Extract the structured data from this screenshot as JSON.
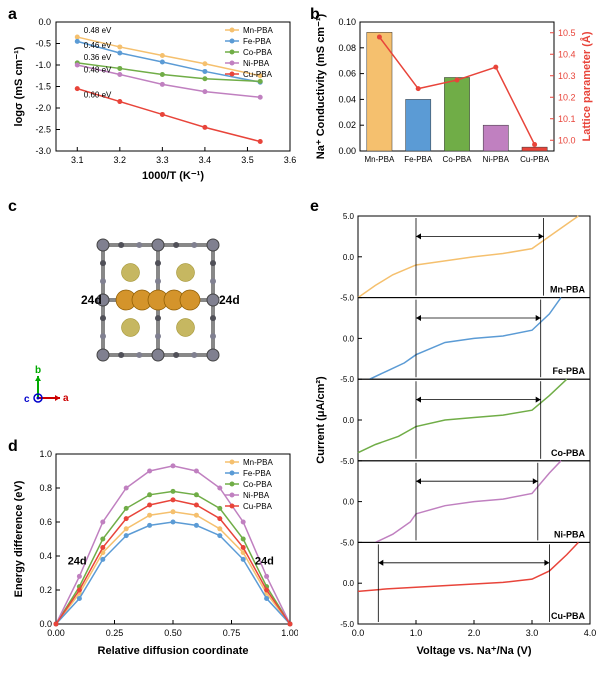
{
  "panel_a": {
    "label": "a",
    "type": "scatter+line",
    "xlabel": "1000/T (K⁻¹)",
    "ylabel": "logσ (mS cm⁻¹)",
    "xlim": [
      3.05,
      3.6
    ],
    "ylim": [
      -3.0,
      0.0
    ],
    "xtick_step": 0.1,
    "ytick_step": 0.5,
    "series": [
      {
        "name": "Mn-PBA",
        "color": "#f5c06e",
        "points": [
          [
            3.1,
            -0.35
          ],
          [
            3.2,
            -0.58
          ],
          [
            3.3,
            -0.78
          ],
          [
            3.4,
            -0.97
          ],
          [
            3.53,
            -1.25
          ]
        ],
        "ea": "0.48 eV"
      },
      {
        "name": "Fe-PBA",
        "color": "#5b9bd5",
        "points": [
          [
            3.1,
            -0.45
          ],
          [
            3.2,
            -0.72
          ],
          [
            3.3,
            -0.93
          ],
          [
            3.4,
            -1.15
          ],
          [
            3.53,
            -1.4
          ]
        ],
        "ea": "0.46 eV"
      },
      {
        "name": "Co-PBA",
        "color": "#70ad47",
        "points": [
          [
            3.1,
            -0.95
          ],
          [
            3.2,
            -1.08
          ],
          [
            3.3,
            -1.22
          ],
          [
            3.4,
            -1.32
          ],
          [
            3.53,
            -1.38
          ]
        ],
        "ea": "0.36 eV"
      },
      {
        "name": "Ni-PBA",
        "color": "#c080c0",
        "points": [
          [
            3.1,
            -1.0
          ],
          [
            3.2,
            -1.22
          ],
          [
            3.3,
            -1.45
          ],
          [
            3.4,
            -1.62
          ],
          [
            3.53,
            -1.75
          ]
        ],
        "ea": "0.48 eV"
      },
      {
        "name": "Cu-PBA",
        "color": "#e8443a",
        "points": [
          [
            3.1,
            -1.55
          ],
          [
            3.2,
            -1.85
          ],
          [
            3.3,
            -2.15
          ],
          [
            3.4,
            -2.45
          ],
          [
            3.53,
            -2.78
          ]
        ],
        "ea": "0.60 eV"
      }
    ],
    "label_fontsize": 11,
    "tick_fontsize": 9
  },
  "panel_b": {
    "label": "b",
    "type": "bar+line",
    "ylabel_left": "Na⁺ Conductivity (mS cm⁻¹)",
    "ylabel_right": "Lattice parameter (Å)",
    "categories": [
      "Mn-PBA",
      "Fe-PBA",
      "Co-PBA",
      "Ni-PBA",
      "Cu-PBA"
    ],
    "bar_values": [
      0.092,
      0.04,
      0.057,
      0.02,
      0.003
    ],
    "bar_colors": [
      "#f5c06e",
      "#5b9bd5",
      "#70ad47",
      "#c080c0",
      "#e8443a"
    ],
    "line_values": [
      10.48,
      10.24,
      10.28,
      10.34,
      9.98
    ],
    "line_color": "#e8443a",
    "ylim_left": [
      0.0,
      0.1
    ],
    "ylim_right": [
      9.95,
      10.55
    ],
    "ytick_left_step": 0.02,
    "bar_width": 0.65,
    "label_fontsize": 11,
    "tick_fontsize": 9
  },
  "panel_c": {
    "label": "c",
    "type": "structure",
    "site_labels": [
      "24d",
      "24d"
    ],
    "axes": {
      "a_color": "#cc0000",
      "b_color": "#00aa00",
      "c_color": "#0000cc"
    },
    "atom_colors": {
      "large": "#d4942b",
      "mid": "#c0b050",
      "small1": "#808090",
      "small2": "#505058"
    }
  },
  "panel_d": {
    "label": "d",
    "type": "line+markers",
    "xlabel": "Relative diffusion coordinate",
    "ylabel": "Energy difference (eV)",
    "xlim": [
      0.0,
      1.0
    ],
    "ylim": [
      0.0,
      1.0
    ],
    "xtick_step": 0.25,
    "ytick_step": 0.2,
    "site_labels": [
      "24d",
      "24d"
    ],
    "series": [
      {
        "name": "Mn-PBA",
        "color": "#f5c06e",
        "points": [
          [
            0,
            0
          ],
          [
            0.1,
            0.18
          ],
          [
            0.2,
            0.42
          ],
          [
            0.3,
            0.56
          ],
          [
            0.4,
            0.64
          ],
          [
            0.5,
            0.66
          ],
          [
            0.6,
            0.64
          ],
          [
            0.7,
            0.56
          ],
          [
            0.8,
            0.42
          ],
          [
            0.9,
            0.18
          ],
          [
            1,
            0
          ]
        ]
      },
      {
        "name": "Fe-PBA",
        "color": "#5b9bd5",
        "points": [
          [
            0,
            0
          ],
          [
            0.1,
            0.15
          ],
          [
            0.2,
            0.38
          ],
          [
            0.3,
            0.52
          ],
          [
            0.4,
            0.58
          ],
          [
            0.5,
            0.6
          ],
          [
            0.6,
            0.58
          ],
          [
            0.7,
            0.52
          ],
          [
            0.8,
            0.38
          ],
          [
            0.9,
            0.15
          ],
          [
            1,
            0
          ]
        ]
      },
      {
        "name": "Co-PBA",
        "color": "#70ad47",
        "points": [
          [
            0,
            0
          ],
          [
            0.1,
            0.22
          ],
          [
            0.2,
            0.5
          ],
          [
            0.3,
            0.68
          ],
          [
            0.4,
            0.76
          ],
          [
            0.5,
            0.78
          ],
          [
            0.6,
            0.76
          ],
          [
            0.7,
            0.68
          ],
          [
            0.8,
            0.5
          ],
          [
            0.9,
            0.22
          ],
          [
            1,
            0
          ]
        ]
      },
      {
        "name": "Ni-PBA",
        "color": "#c080c0",
        "points": [
          [
            0,
            0
          ],
          [
            0.1,
            0.28
          ],
          [
            0.2,
            0.6
          ],
          [
            0.3,
            0.8
          ],
          [
            0.4,
            0.9
          ],
          [
            0.5,
            0.93
          ],
          [
            0.6,
            0.9
          ],
          [
            0.7,
            0.8
          ],
          [
            0.8,
            0.6
          ],
          [
            0.9,
            0.28
          ],
          [
            1,
            0
          ]
        ]
      },
      {
        "name": "Cu-PBA",
        "color": "#e8443a",
        "points": [
          [
            0,
            0
          ],
          [
            0.1,
            0.2
          ],
          [
            0.2,
            0.45
          ],
          [
            0.3,
            0.62
          ],
          [
            0.4,
            0.7
          ],
          [
            0.5,
            0.73
          ],
          [
            0.6,
            0.7
          ],
          [
            0.7,
            0.62
          ],
          [
            0.8,
            0.45
          ],
          [
            0.9,
            0.2
          ],
          [
            1,
            0
          ]
        ]
      }
    ],
    "label_fontsize": 11,
    "tick_fontsize": 9
  },
  "panel_e": {
    "label": "e",
    "type": "stacked-line",
    "xlabel": "Voltage vs. Na⁺/Na (V)",
    "ylabel": "Current (μA/cm²)",
    "xlim": [
      0.0,
      4.0
    ],
    "ylim_each": [
      -5.0,
      5.0
    ],
    "xtick_step": 1.0,
    "ytick_step": 5.0,
    "subpanels": [
      {
        "name": "Mn-PBA",
        "color": "#f5c06e",
        "window": [
          1.0,
          3.2
        ],
        "curve": [
          [
            0,
            -5
          ],
          [
            0.3,
            -3.5
          ],
          [
            0.6,
            -2.2
          ],
          [
            1.0,
            -1.0
          ],
          [
            1.5,
            -0.5
          ],
          [
            2.0,
            0
          ],
          [
            2.5,
            0.4
          ],
          [
            3.0,
            1.0
          ],
          [
            3.3,
            2.5
          ],
          [
            3.6,
            4.0
          ],
          [
            3.8,
            5
          ]
        ]
      },
      {
        "name": "Fe-PBA",
        "color": "#5b9bd5",
        "window": [
          1.0,
          3.15
        ],
        "curve": [
          [
            0.2,
            -5
          ],
          [
            0.5,
            -4
          ],
          [
            0.8,
            -3
          ],
          [
            1.0,
            -2
          ],
          [
            1.5,
            -0.5
          ],
          [
            2.0,
            0
          ],
          [
            2.5,
            0.3
          ],
          [
            3.0,
            1.0
          ],
          [
            3.3,
            3
          ],
          [
            3.5,
            5
          ]
        ]
      },
      {
        "name": "Co-PBA",
        "color": "#70ad47",
        "window": [
          1.0,
          3.15
        ],
        "curve": [
          [
            0,
            -4
          ],
          [
            0.3,
            -3
          ],
          [
            0.7,
            -2
          ],
          [
            1.0,
            -0.8
          ],
          [
            1.5,
            0
          ],
          [
            2.0,
            0.3
          ],
          [
            2.5,
            0.6
          ],
          [
            3.0,
            1.2
          ],
          [
            3.3,
            3
          ],
          [
            3.6,
            5
          ]
        ]
      },
      {
        "name": "Ni-PBA",
        "color": "#c080c0",
        "window": [
          1.0,
          3.1
        ],
        "curve": [
          [
            0.3,
            -5
          ],
          [
            0.6,
            -4
          ],
          [
            0.9,
            -2.5
          ],
          [
            1.0,
            -1.5
          ],
          [
            1.5,
            -0.5
          ],
          [
            2.0,
            0
          ],
          [
            2.5,
            0.3
          ],
          [
            3.0,
            1.0
          ],
          [
            3.3,
            3.5
          ],
          [
            3.5,
            5
          ]
        ]
      },
      {
        "name": "Cu-PBA",
        "color": "#e8443a",
        "window": [
          0.35,
          3.3
        ],
        "curve": [
          [
            0,
            -1
          ],
          [
            0.5,
            -0.7
          ],
          [
            1.0,
            -0.5
          ],
          [
            1.5,
            -0.3
          ],
          [
            2.0,
            -0.1
          ],
          [
            2.5,
            0.1
          ],
          [
            3.0,
            0.5
          ],
          [
            3.3,
            1.5
          ],
          [
            3.6,
            3.5
          ],
          [
            3.8,
            5
          ]
        ]
      }
    ],
    "label_fontsize": 11,
    "tick_fontsize": 9
  },
  "background_color": "#ffffff"
}
